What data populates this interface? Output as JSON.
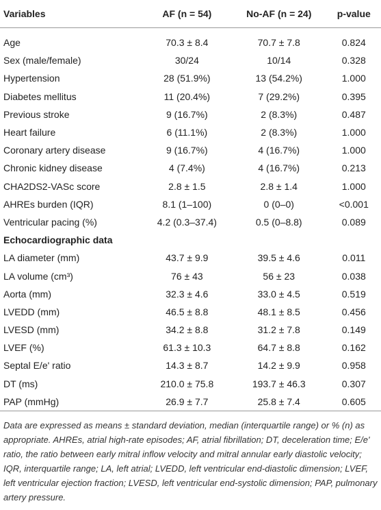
{
  "table": {
    "header": [
      "Variables",
      "AF (n = 54)",
      "No-AF (n = 24)",
      "p-value"
    ],
    "groups": [
      {
        "rows": [
          [
            "Age",
            "70.3 ± 8.4",
            "70.7 ± 7.8",
            "0.824"
          ],
          [
            "Sex (male/female)",
            "30/24",
            "10/14",
            "0.328"
          ],
          [
            "Hypertension",
            "28 (51.9%)",
            "13 (54.2%)",
            "1.000"
          ],
          [
            "Diabetes mellitus",
            "11 (20.4%)",
            "7 (29.2%)",
            "0.395"
          ],
          [
            "Previous stroke",
            "9 (16.7%)",
            "2 (8.3%)",
            "0.487"
          ],
          [
            "Heart failure",
            "6 (11.1%)",
            "2 (8.3%)",
            "1.000"
          ],
          [
            "Coronary artery disease",
            "9 (16.7%)",
            "4 (16.7%)",
            "1.000"
          ],
          [
            "Chronic kidney disease",
            "4 (7.4%)",
            "4 (16.7%)",
            "0.213"
          ],
          [
            "CHA2DS2-VASc score",
            "2.8 ± 1.5",
            "2.8 ± 1.4",
            "1.000"
          ],
          [
            "AHREs burden (IQR)",
            "8.1 (1–100)",
            "0 (0–0)",
            "<0.001"
          ],
          [
            "Ventricular pacing (%)",
            "4.2 (0.3–37.4)",
            "0.5 (0–8.8)",
            "0.089"
          ]
        ]
      },
      {
        "title": "Echocardiographic data",
        "rows": [
          [
            "LA diameter (mm)",
            "43.7 ± 9.9",
            "39.5 ± 4.6",
            "0.011"
          ],
          [
            "LA volume (cm³)",
            "76 ± 43",
            "56 ± 23",
            "0.038"
          ],
          [
            "Aorta (mm)",
            "32.3 ± 4.6",
            "33.0 ± 4.5",
            "0.519"
          ],
          [
            "LVEDD (mm)",
            "46.5 ± 8.8",
            "48.1 ± 8.5",
            "0.456"
          ],
          [
            "LVESD (mm)",
            "34.2 ± 8.8",
            "31.2 ± 7.8",
            "0.149"
          ],
          [
            "LVEF (%)",
            "61.3 ± 10.3",
            "64.7 ± 8.8",
            "0.162"
          ],
          [
            "Septal E/e' ratio",
            "14.3 ± 8.7",
            "14.2 ± 9.9",
            "0.958"
          ],
          [
            "DT (ms)",
            "210.0 ± 75.8",
            "193.7 ± 46.3",
            "0.307"
          ],
          [
            "PAP (mmHg)",
            "26.9 ± 7.7",
            "25.8 ± 7.4",
            "0.605"
          ]
        ]
      }
    ],
    "footnote": "Data are expressed as means ± standard deviation, median (interquartile range) or % (n) as appropriate. AHREs, atrial high-rate episodes; AF, atrial fibrillation; DT, deceleration time; E/e' ratio, the ratio between early mitral inflow velocity and mitral annular early diastolic velocity; IQR, interquartile range; LA, left atrial; LVEDD, left ventricular end-diastolic dimension; LVEF, left ventricular ejection fraction; LVESD, left ventricular end-systolic dimension; PAP, pulmonary artery pressure."
  }
}
